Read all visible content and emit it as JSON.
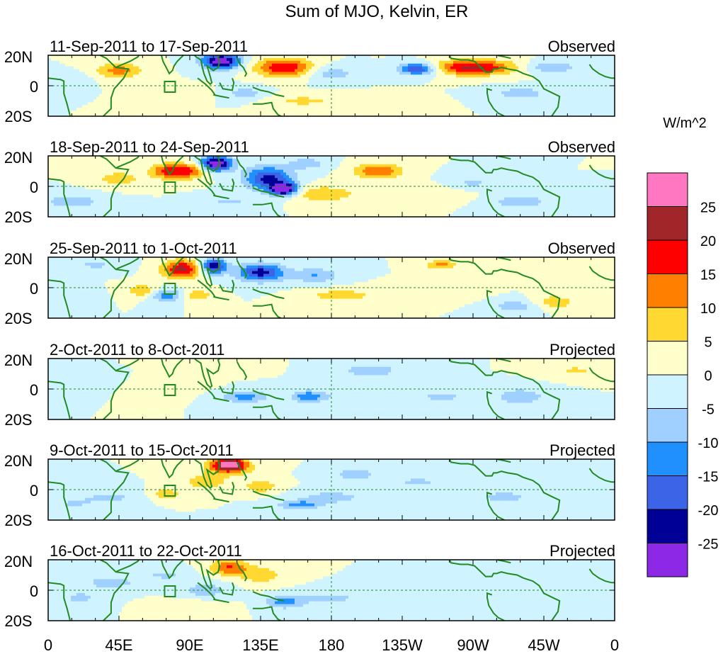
{
  "chart_data": {
    "type": "heatmap",
    "title": "Sum of MJO, Kelvin, ER",
    "units": "W/m^2",
    "x_ticks": [
      "0",
      "45E",
      "90E",
      "135E",
      "180",
      "135W",
      "90W",
      "45W",
      "0"
    ],
    "y_ticks": [
      "20N",
      "0",
      "20S"
    ],
    "x_range": [
      0,
      360
    ],
    "y_range": [
      -20,
      20
    ],
    "reference_lines": [
      "equator (0)",
      "180 meridian"
    ],
    "colorbar": {
      "labels": [
        "25",
        "20",
        "15",
        "10",
        "5",
        "0",
        "-5",
        "-10",
        "-15",
        "-20",
        "-25"
      ],
      "colors": [
        "#ff77c0",
        "#a0262a",
        "#ff0000",
        "#ff7f00",
        "#ffd832",
        "#ffffcc",
        "#d0f4ff",
        "#a0d0ff",
        "#2090ff",
        "#3c64e6",
        "#000096",
        "#8c28e6"
      ]
    },
    "panels": [
      {
        "period": "11-Sep-2011 to 17-Sep-2011",
        "status": "Observed",
        "blobs": [
          [
            110,
            16,
            12,
            5,
            -30
          ],
          [
            150,
            12,
            18,
            6,
            20
          ],
          [
            235,
            11,
            12,
            4,
            -22
          ],
          [
            270,
            12,
            25,
            5,
            22
          ],
          [
            45,
            10,
            15,
            5,
            12
          ],
          [
            180,
            8,
            15,
            5,
            -8
          ],
          [
            320,
            12,
            15,
            4,
            -10
          ],
          [
            125,
            -5,
            12,
            4,
            -8
          ],
          [
            300,
            -5,
            18,
            4,
            -8
          ],
          [
            160,
            -10,
            20,
            4,
            6
          ],
          [
            85,
            -5,
            15,
            4,
            4
          ],
          [
            10,
            5,
            15,
            4,
            -5
          ],
          [
            200,
            -10,
            25,
            4,
            4
          ]
        ]
      },
      {
        "period": "18-Sep-2011 to 24-Sep-2011",
        "status": "Observed",
        "blobs": [
          [
            107,
            15,
            10,
            5,
            -30
          ],
          [
            140,
            5,
            15,
            8,
            -22
          ],
          [
            150,
            -2,
            8,
            4,
            -30
          ],
          [
            75,
            10,
            10,
            5,
            16
          ],
          [
            90,
            10,
            10,
            5,
            16
          ],
          [
            175,
            -5,
            20,
            5,
            10
          ],
          [
            210,
            10,
            15,
            5,
            15
          ],
          [
            165,
            15,
            12,
            4,
            -8
          ],
          [
            270,
            2,
            15,
            5,
            -6
          ],
          [
            240,
            -5,
            30,
            5,
            5
          ],
          [
            300,
            -10,
            20,
            5,
            -8
          ],
          [
            15,
            -10,
            20,
            5,
            -8
          ],
          [
            45,
            5,
            15,
            5,
            8
          ],
          [
            115,
            -10,
            15,
            4,
            -6
          ]
        ]
      },
      {
        "period": "25-Sep-2011 to 1-Oct-2011",
        "status": "Observed",
        "blobs": [
          [
            85,
            12,
            12,
            6,
            22
          ],
          [
            105,
            14,
            8,
            5,
            -25
          ],
          [
            135,
            10,
            15,
            6,
            -22
          ],
          [
            170,
            8,
            15,
            5,
            -10
          ],
          [
            75,
            -5,
            10,
            4,
            -14
          ],
          [
            95,
            -5,
            10,
            4,
            8
          ],
          [
            60,
            -2,
            10,
            4,
            10
          ],
          [
            185,
            -5,
            20,
            4,
            8
          ],
          [
            240,
            -5,
            30,
            5,
            5
          ],
          [
            250,
            15,
            10,
            3,
            12
          ],
          [
            300,
            -12,
            20,
            5,
            -8
          ],
          [
            320,
            -10,
            15,
            5,
            10
          ],
          [
            30,
            15,
            15,
            4,
            -6
          ],
          [
            10,
            -5,
            15,
            4,
            -5
          ]
        ]
      },
      {
        "period": "2-Oct-2011 to 8-Oct-2011",
        "status": "Projected",
        "blobs": [
          [
            125,
            -5,
            15,
            4,
            -12
          ],
          [
            165,
            -5,
            10,
            4,
            -12
          ],
          [
            205,
            12,
            20,
            5,
            -8
          ],
          [
            250,
            -5,
            20,
            5,
            -6
          ],
          [
            300,
            -5,
            15,
            5,
            -10
          ],
          [
            75,
            2,
            20,
            5,
            5
          ],
          [
            20,
            5,
            20,
            5,
            -5
          ],
          [
            335,
            12,
            15,
            4,
            6
          ],
          [
            100,
            15,
            20,
            4,
            5
          ],
          [
            190,
            -5,
            30,
            5,
            -4
          ]
        ]
      },
      {
        "period": "9-Oct-2011 to 15-Oct-2011",
        "status": "Projected",
        "blobs": [
          [
            115,
            17,
            10,
            4,
            25
          ],
          [
            115,
            14,
            15,
            5,
            12
          ],
          [
            135,
            2,
            10,
            4,
            10
          ],
          [
            75,
            -3,
            10,
            4,
            8
          ],
          [
            100,
            5,
            15,
            5,
            8
          ],
          [
            160,
            -10,
            15,
            3,
            -12
          ],
          [
            180,
            -5,
            20,
            4,
            -8
          ],
          [
            195,
            10,
            15,
            4,
            -8
          ],
          [
            235,
            5,
            20,
            4,
            -6
          ],
          [
            290,
            -5,
            15,
            4,
            -8
          ],
          [
            40,
            -5,
            20,
            5,
            -6
          ],
          [
            15,
            -10,
            15,
            5,
            -5
          ],
          [
            330,
            5,
            15,
            4,
            -4
          ]
        ]
      },
      {
        "period": "16-Oct-2011 to 22-Oct-2011",
        "status": "Projected",
        "blobs": [
          [
            115,
            15,
            12,
            5,
            15
          ],
          [
            135,
            10,
            15,
            6,
            8
          ],
          [
            150,
            -8,
            12,
            4,
            -12
          ],
          [
            100,
            0,
            15,
            5,
            -8
          ],
          [
            40,
            5,
            20,
            5,
            -7
          ],
          [
            20,
            -5,
            15,
            5,
            -6
          ],
          [
            75,
            10,
            15,
            4,
            -6
          ],
          [
            180,
            -5,
            25,
            5,
            -6
          ],
          [
            230,
            0,
            20,
            5,
            -5
          ],
          [
            290,
            10,
            15,
            4,
            -5
          ],
          [
            320,
            -5,
            20,
            4,
            -4
          ],
          [
            90,
            -10,
            20,
            4,
            4
          ]
        ]
      }
    ]
  }
}
